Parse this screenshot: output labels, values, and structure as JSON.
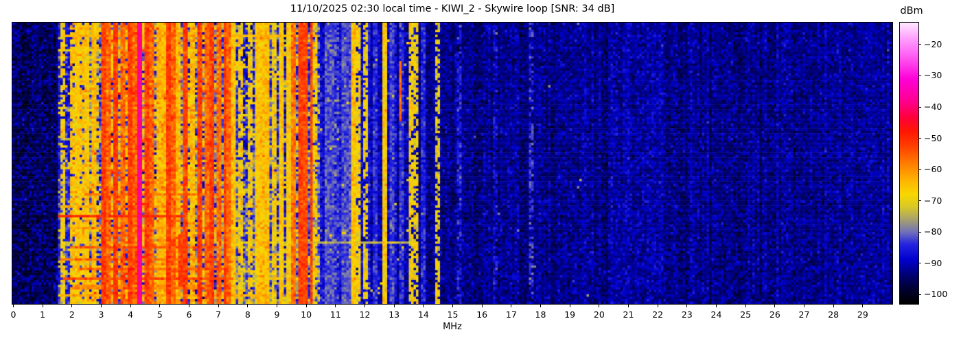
{
  "chart_data": {
    "type": "heatmap",
    "subtype": "radio-waterfall-spectrogram",
    "title": "11/10/2025 02:30 local time - KIWI_2 - Skywire loop [SNR: 34 dB]",
    "xlabel": "MHz",
    "ylabel": "",
    "x_range": [
      0,
      30
    ],
    "x_ticks": [
      0,
      1,
      2,
      3,
      4,
      5,
      6,
      7,
      8,
      9,
      10,
      11,
      12,
      13,
      14,
      15,
      16,
      17,
      18,
      19,
      20,
      21,
      22,
      23,
      24,
      25,
      26,
      27,
      28,
      29
    ],
    "y_ticks": [],
    "grid": false,
    "legend": "colorbar-right",
    "colorbar": {
      "label": "dBm",
      "vmin": -103,
      "vmax": -13,
      "ticks": [
        {
          "v": -20,
          "label": "−20"
        },
        {
          "v": -30,
          "label": "−30"
        },
        {
          "v": -40,
          "label": "−40"
        },
        {
          "v": -50,
          "label": "−50"
        },
        {
          "v": -60,
          "label": "−60"
        },
        {
          "v": -70,
          "label": "−70"
        },
        {
          "v": -80,
          "label": "−80"
        },
        {
          "v": -90,
          "label": "−90"
        },
        {
          "v": -100,
          "label": "−100"
        }
      ],
      "colormap": [
        {
          "p": 0.0,
          "c": "#000000"
        },
        {
          "p": 0.044,
          "c": "#000028"
        },
        {
          "p": 0.1,
          "c": "#000070"
        },
        {
          "p": 0.156,
          "c": "#0000cd"
        },
        {
          "p": 0.211,
          "c": "#2424e0"
        },
        {
          "p": 0.256,
          "c": "#7272b8"
        },
        {
          "p": 0.3,
          "c": "#a8a26c"
        },
        {
          "p": 0.344,
          "c": "#d8c828"
        },
        {
          "p": 0.389,
          "c": "#f8d800"
        },
        {
          "p": 0.444,
          "c": "#ffb000"
        },
        {
          "p": 0.5,
          "c": "#ff7c00"
        },
        {
          "p": 0.556,
          "c": "#ff4400"
        },
        {
          "p": 0.611,
          "c": "#ff1800"
        },
        {
          "p": 0.667,
          "c": "#ff0040"
        },
        {
          "p": 0.722,
          "c": "#ff0090"
        },
        {
          "p": 0.8,
          "c": "#ff00d8"
        },
        {
          "p": 0.878,
          "c": "#ff5af2"
        },
        {
          "p": 0.944,
          "c": "#ffa0ff"
        },
        {
          "p": 1.0,
          "c": "#ffe8ff"
        }
      ]
    },
    "bands": [
      {
        "f0": -0.1,
        "f1": 1.55,
        "m": -97,
        "sd": 2.2,
        "csd": 0.6,
        "p2": 0.3,
        "m2": -91,
        "sd2": 2
      },
      {
        "f0": 1.55,
        "f1": 2.58,
        "m": -87,
        "mb": -84,
        "sd": 3.0,
        "csd": 2.0,
        "p2": 0.12,
        "m2": -72,
        "sd2": 4
      },
      {
        "f0": 2.58,
        "f1": 3.3,
        "m": -73,
        "sd": 5,
        "csd": 3,
        "p2": 0.34,
        "m2": -86,
        "sd2": 4,
        "sp": {
          "p": 0.05,
          "m": -56,
          "sd": 4
        },
        "grow": true
      },
      {
        "f0": 3.3,
        "f1": 4.5,
        "m": -68,
        "sd": 5,
        "csd": 3,
        "p2": 0.26,
        "m2": -85,
        "sd2": 4,
        "sp": {
          "p": 0.1,
          "m": -54,
          "sd": 4
        },
        "grow": true
      },
      {
        "f0": 4.5,
        "f1": 6.15,
        "m": -72,
        "sd": 5,
        "csd": 3,
        "p2": 0.34,
        "m2": -86,
        "sd2": 4,
        "sp": {
          "p": 0.05,
          "m": -56,
          "sd": 4
        },
        "grow": true
      },
      {
        "f0": 6.15,
        "f1": 7.55,
        "m": -74,
        "sd": 5,
        "csd": 3,
        "p2": 0.38,
        "m2": -86,
        "sd2": 4,
        "sp": {
          "p": 0.04,
          "m": -57,
          "sd": 4
        },
        "grow": true
      },
      {
        "f0": 7.55,
        "f1": 8.4,
        "m": -86,
        "mb": -78,
        "sd": 4,
        "csd": 2.5,
        "p2": 0.25,
        "m2": -71,
        "sd2": 3,
        "grow": true
      },
      {
        "f0": 8.4,
        "f1": 9.0,
        "m": -81,
        "mb": -76,
        "sd": 5,
        "csd": 2.5,
        "p2": 0.2,
        "m2": -70,
        "sd2": 3,
        "grow": true
      },
      {
        "f0": 9.0,
        "f1": 10.45,
        "m": -83,
        "mb": -79,
        "sd": 5,
        "csd": 3,
        "p2": 0.18,
        "m2": -70,
        "sd2": 4,
        "grow": true
      },
      {
        "f0": 10.45,
        "f1": 11.55,
        "m": -87,
        "mb": -85,
        "sd": 3,
        "csd": 1.8,
        "sp": {
          "p": 0.012,
          "m": -72,
          "sd": 3
        }
      },
      {
        "f0": 11.55,
        "f1": 13.85,
        "m": -89.5,
        "sd": 2.8,
        "csd": 1.5,
        "sp": {
          "p": 0.008,
          "m": -72,
          "sd": 3
        }
      },
      {
        "f0": 13.85,
        "f1": 20.3,
        "m": -92.5,
        "sd": 2.6,
        "csd": 1.1,
        "sp": {
          "p": 0.002,
          "m": -80,
          "sd": 3
        }
      },
      {
        "f0": 20.3,
        "f1": 22.3,
        "m": -91,
        "sd": 2.6,
        "csd": 1.1
      },
      {
        "f0": 22.3,
        "f1": 30.1,
        "m": -92.5,
        "sd": 2.6,
        "csd": 1.1
      }
    ],
    "columns": [
      {
        "f": 4.28,
        "m": -38,
        "sd": 1.2,
        "w": 0.1
      },
      {
        "f": 3.06,
        "m": -52,
        "sd": 2.5
      },
      {
        "f": 3.48,
        "m": -52,
        "sd": 2.5
      },
      {
        "f": 3.95,
        "m": -52,
        "sd": 2.5
      },
      {
        "f": 4.56,
        "m": -52,
        "sd": 2.5
      },
      {
        "f": 5.31,
        "m": -52,
        "sd": 2.5
      },
      {
        "f": 5.91,
        "m": -52,
        "sd": 2.5
      },
      {
        "f": 6.38,
        "m": -52,
        "sd": 2.5
      },
      {
        "f": 6.8,
        "m": -52,
        "sd": 2.5
      },
      {
        "f": 7.23,
        "m": -52,
        "sd": 2.5
      },
      {
        "f": 9.78,
        "m": -52,
        "sd": 2.5
      },
      {
        "f": 10.0,
        "m": -53,
        "sd": 2.5
      },
      {
        "f": 10.2,
        "m": -52,
        "sd": 2.5
      },
      {
        "f": 3.24,
        "m": -56,
        "sd": 3
      },
      {
        "f": 3.71,
        "m": -56,
        "sd": 3
      },
      {
        "f": 4.13,
        "m": -56,
        "sd": 3
      },
      {
        "f": 4.74,
        "m": -56,
        "sd": 3
      },
      {
        "f": 5.45,
        "m": -56,
        "sd": 3
      },
      {
        "f": 6.57,
        "m": -56,
        "sd": 3
      },
      {
        "f": 6.99,
        "m": -56,
        "sd": 3
      },
      {
        "f": 7.37,
        "m": -56,
        "sd": 3
      },
      {
        "f": 9.57,
        "m": -57,
        "sd": 3
      },
      {
        "f": 1.65,
        "m": -68,
        "sd": 3,
        "dash": 0.8
      },
      {
        "f": 1.98,
        "m": -66,
        "sd": 3,
        "dash": 0.85
      },
      {
        "f": 2.17,
        "m": -66,
        "sd": 3
      },
      {
        "f": 2.35,
        "m": -66,
        "sd": 3,
        "dash": 0.8
      },
      {
        "f": 2.54,
        "m": -66,
        "sd": 3
      },
      {
        "f": 2.73,
        "m": -65,
        "sd": 3
      },
      {
        "f": 4.93,
        "m": -64,
        "sd": 3
      },
      {
        "f": 5.12,
        "m": -64,
        "sd": 3
      },
      {
        "f": 5.63,
        "m": -64,
        "sd": 3
      },
      {
        "f": 6.15,
        "m": -64,
        "sd": 3
      },
      {
        "f": 7.55,
        "m": -66,
        "sd": 3
      },
      {
        "f": 7.79,
        "m": -67,
        "sd": 3,
        "dash": 0.7
      },
      {
        "f": 8.07,
        "m": -67,
        "sd": 3,
        "dash": 0.7
      },
      {
        "f": 8.3,
        "m": -66,
        "sd": 3
      },
      {
        "f": 8.49,
        "m": -65,
        "sd": 3
      },
      {
        "f": 8.68,
        "m": -65,
        "sd": 3
      },
      {
        "f": 8.91,
        "m": -67,
        "sd": 3,
        "dash": 0.75
      },
      {
        "f": 9.15,
        "m": -66,
        "sd": 3
      },
      {
        "f": 9.38,
        "m": -67,
        "sd": 3
      },
      {
        "f": 10.32,
        "m": -68,
        "sd": 3,
        "dash": 0.7
      },
      {
        "f": 11.61,
        "m": -66,
        "sd": 3
      },
      {
        "f": 11.8,
        "m": -68,
        "sd": 3,
        "dash": 0.8
      },
      {
        "f": 12.03,
        "m": -69,
        "sd": 3,
        "dash": 0.7
      },
      {
        "f": 12.7,
        "m": -67,
        "sd": 3
      },
      {
        "f": 13.55,
        "m": -68,
        "sd": 3,
        "dash": 0.85
      },
      {
        "f": 13.76,
        "m": -69,
        "sd": 3,
        "dash": 0.7
      },
      {
        "f": 14.49,
        "m": -70,
        "sd": 3,
        "dash": 0.7
      },
      {
        "f": 10.7,
        "m": -82,
        "sd": 2.5
      },
      {
        "f": 10.88,
        "m": -82,
        "sd": 2.5
      },
      {
        "f": 11.26,
        "m": -82,
        "sd": 2.5
      },
      {
        "f": 11.44,
        "m": -83,
        "sd": 2.5
      },
      {
        "f": 12.38,
        "m": -84,
        "sd": 2.5
      },
      {
        "f": 12.9,
        "m": -83,
        "sd": 2.5
      },
      {
        "f": 13.23,
        "m": -84,
        "sd": 2.5
      },
      {
        "f": 14.02,
        "m": -85,
        "sd": 2.5
      },
      {
        "f": 15.24,
        "m": -86,
        "sd": 2.5,
        "dash": 0.7
      },
      {
        "f": 16.45,
        "m": -87,
        "sd": 2.5,
        "dash": 0.5
      },
      {
        "f": 17.65,
        "m": -83,
        "sd": 2.5,
        "dash": 0.55
      }
    ],
    "streaks": [
      {
        "t": 0.045,
        "f0": 1.6,
        "f1": 10.35,
        "m": -64
      },
      {
        "t": 0.095,
        "f0": 1.7,
        "f1": 7.3,
        "m": -70
      },
      {
        "t": 0.155,
        "f0": 2.2,
        "f1": 8.0,
        "m": -73
      },
      {
        "t": 0.3,
        "f0": 1.6,
        "f1": 6.3,
        "m": -77
      },
      {
        "t": 0.415,
        "f0": 1.8,
        "f1": 7.0,
        "m": -73
      },
      {
        "t": 0.52,
        "f0": 1.8,
        "f1": 6.9,
        "m": -70
      },
      {
        "t": 0.575,
        "f0": 2.3,
        "f1": 6.2,
        "m": -66
      },
      {
        "t": 0.615,
        "f0": 2.4,
        "f1": 7.45,
        "m": -58
      },
      {
        "t": 0.655,
        "f0": 1.6,
        "f1": 4.9,
        "m": -63
      },
      {
        "t": 0.685,
        "f0": 1.55,
        "f1": 5.75,
        "m": -50
      },
      {
        "t": 0.73,
        "f0": 2.2,
        "f1": 7.2,
        "m": -62
      },
      {
        "t": 0.785,
        "f0": 1.6,
        "f1": 13.6,
        "m": -74
      },
      {
        "t": 0.8,
        "f0": 1.9,
        "f1": 7.0,
        "m": -55
      },
      {
        "t": 0.845,
        "f0": 1.6,
        "f1": 6.4,
        "m": -58
      },
      {
        "t": 0.875,
        "f0": 2.3,
        "f1": 7.35,
        "m": -56
      },
      {
        "t": 0.91,
        "f0": 1.7,
        "f1": 7.5,
        "m": -54
      },
      {
        "t": 0.94,
        "f0": 2.0,
        "f1": 6.6,
        "m": -60
      },
      {
        "t": 0.97,
        "f0": 1.6,
        "f1": 8.6,
        "m": -63
      }
    ],
    "bursts": [
      {
        "f": 13.21,
        "t0": 0.14,
        "t1": 0.35,
        "m": -56
      },
      {
        "f": 5.72,
        "t0": 0.75,
        "t1": 0.94,
        "m": -52
      }
    ]
  }
}
